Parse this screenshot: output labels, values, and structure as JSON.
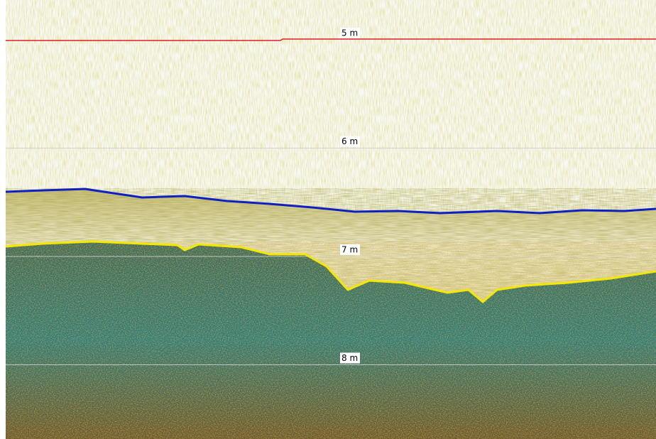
{
  "depth_labels": [
    "5 m",
    "6 m",
    "7 m",
    "8 m"
  ]
}
